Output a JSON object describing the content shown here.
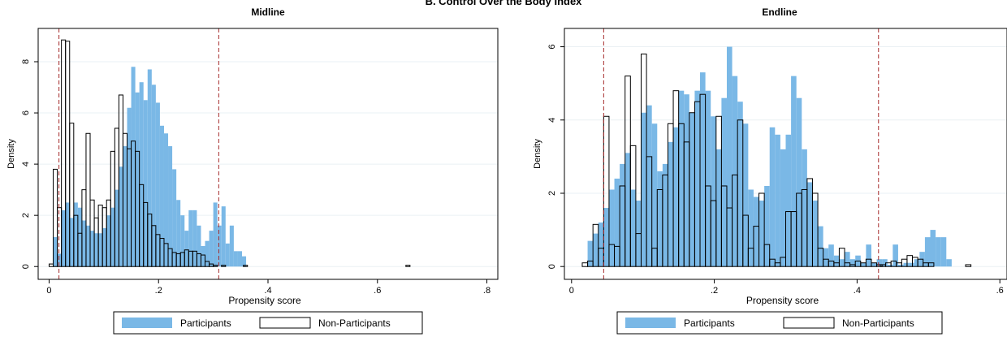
{
  "figure_title": "B. Control Over the Body Index",
  "colors": {
    "participants": "#7ab8e6",
    "non_participants_edge": "#000000",
    "cutoff_line": "#a52a2a",
    "grid": "#eaf0f4"
  },
  "chart_data": [
    {
      "type": "bar",
      "title": "Midline",
      "xlabel": "Propensity score",
      "ylabel": "Density",
      "xlim": [
        -0.02,
        0.82
      ],
      "ylim": [
        -0.5,
        9.3
      ],
      "xticks": [
        0,
        0.2,
        0.4,
        0.6,
        0.8
      ],
      "xtick_labels": [
        "0",
        ".2",
        ".4",
        ".6",
        ".8"
      ],
      "yticks": [
        0,
        2,
        4,
        6,
        8
      ],
      "ytick_labels": [
        "0",
        "2",
        "4",
        "6",
        "8"
      ],
      "grid": true,
      "legend_position": "bottom",
      "cutoffs": [
        0.018,
        0.31
      ],
      "bin_width": 0.0075,
      "series": [
        {
          "name": "Participants",
          "bins_start": 0.0075,
          "values": [
            1.15,
            0.5,
            2.2,
            2.5,
            1.9,
            2.5,
            2.3,
            1.8,
            1.6,
            1.4,
            1.3,
            1.3,
            1.5,
            2.0,
            2.3,
            3.0,
            3.9,
            4.7,
            6.2,
            7.8,
            6.8,
            7.2,
            6.5,
            7.7,
            7.1,
            6.4,
            5.5,
            5.2,
            4.7,
            3.8,
            2.6,
            2.0,
            1.4,
            2.2,
            2.2,
            1.6,
            0.8,
            1.0,
            1.4,
            2.5,
            1.6,
            2.35,
            0.9,
            1.6,
            0.6,
            0.6,
            0.4
          ]
        },
        {
          "name": "Non-Participants",
          "bins_start": 0.0,
          "values": [
            0.1,
            3.8,
            2.3,
            8.85,
            8.8,
            5.6,
            2.0,
            1.3,
            3.0,
            5.2,
            2.6,
            1.9,
            2.4,
            2.3,
            2.6,
            4.5,
            5.4,
            6.7,
            5.2,
            4.6,
            4.9,
            4.5,
            3.2,
            2.5,
            2.05,
            1.6,
            1.25,
            1.1,
            0.9,
            0.7,
            0.55,
            0.5,
            0.55,
            0.65,
            0.6,
            0.6,
            0.5,
            0.45,
            0.2,
            0.1,
            0.05,
            0.0,
            0.05
          ],
          "outliers": [
            [
              0.355,
              0.05
            ],
            [
              0.652,
              0.05
            ]
          ]
        }
      ]
    },
    {
      "type": "bar",
      "title": "Endline",
      "xlabel": "Propensity score",
      "ylabel": "Density",
      "xlim": [
        -0.01,
        0.61
      ],
      "ylim": [
        -0.35,
        6.5
      ],
      "xticks": [
        0,
        0.2,
        0.4,
        0.6
      ],
      "xtick_labels": [
        "0",
        ".2",
        ".4",
        ".6"
      ],
      "yticks": [
        0,
        2,
        4,
        6
      ],
      "ytick_labels": [
        "0",
        "2",
        "4",
        "6"
      ],
      "grid": true,
      "legend_position": "bottom",
      "cutoffs": [
        0.045,
        0.43
      ],
      "bin_width": 0.0075,
      "series": [
        {
          "name": "Participants",
          "bins_start": 0.0225,
          "values": [
            0.7,
            0.9,
            1.2,
            1.6,
            2.1,
            2.4,
            2.8,
            3.1,
            2.1,
            1.8,
            4.2,
            4.4,
            3.9,
            2.6,
            2.8,
            3.4,
            3.8,
            4.8,
            4.7,
            4.2,
            4.8,
            5.3,
            4.8,
            4.1,
            3.2,
            4.6,
            6.0,
            5.2,
            4.5,
            3.9,
            2.1,
            1.9,
            1.8,
            2.2,
            3.8,
            3.6,
            3.2,
            3.6,
            5.2,
            4.6,
            3.2,
            2.3,
            1.8,
            1.1,
            0.5,
            0.6,
            0.3,
            0.2,
            0.4,
            0.2,
            0.3,
            0.1,
            0.6,
            0.1,
            0.2,
            0.2,
            0.05,
            0.6,
            0.05,
            0.1,
            0.1,
            0.2,
            0.4,
            0.8,
            1.0,
            0.8,
            0.8,
            0.2
          ]
        },
        {
          "name": "Non-Participants",
          "bins_start": 0.015,
          "values": [
            0.1,
            0.15,
            1.15,
            0.5,
            4.1,
            0.6,
            0.55,
            2.2,
            5.2,
            3.3,
            0.9,
            5.8,
            3.0,
            0.5,
            2.1,
            2.5,
            3.9,
            4.8,
            3.9,
            3.4,
            4.2,
            4.5,
            4.7,
            2.2,
            1.8,
            4.1,
            2.2,
            1.6,
            2.5,
            4.0,
            1.4,
            0.5,
            1.1,
            2.0,
            0.6,
            0.2,
            0.1,
            0.25,
            1.5,
            1.5,
            2.0,
            2.1,
            2.4,
            2.0,
            0.5,
            0.2,
            0.15,
            0.1,
            0.5,
            0.1,
            0.05,
            0.15,
            0.1,
            0.2,
            0.1,
            0.05
          ],
          "outliers": [
            [
              0.552,
              0.05
            ]
          ],
          "tail": {
            "start": 0.4325,
            "values": [
              0.05,
              0.1,
              0.15,
              0.1,
              0.2,
              0.3,
              0.25,
              0.2,
              0.1,
              0.1
            ]
          }
        }
      ]
    }
  ],
  "legend": {
    "participants_label": "Participants",
    "non_participants_label": "Non-Participants"
  }
}
